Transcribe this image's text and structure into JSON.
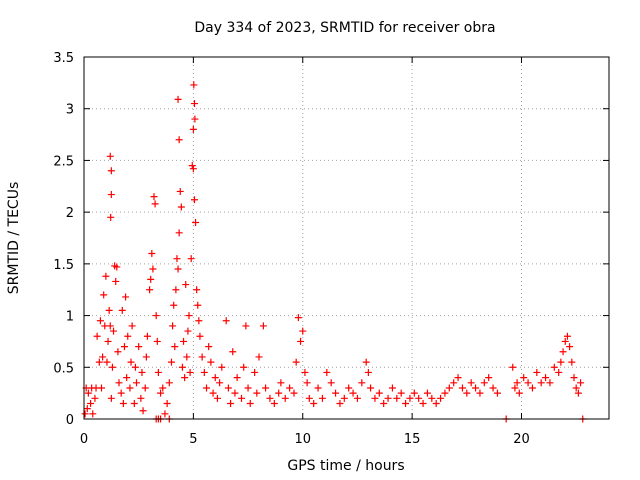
{
  "chart_data": {
    "type": "scatter",
    "title": "Day 334 of 2023, SRMTID for receiver obra",
    "xlabel": "GPS time / hours",
    "ylabel": "SRMTID / TECUs",
    "xlim": [
      0,
      24
    ],
    "ylim": [
      0,
      3.5
    ],
    "x_ticks": [
      0,
      5,
      10,
      15,
      20
    ],
    "x_tick_labels": [
      "0",
      "5",
      "10",
      "15",
      "20"
    ],
    "y_ticks": [
      0,
      0.5,
      1,
      1.5,
      2,
      2.5,
      3,
      3.5
    ],
    "y_tick_labels": [
      "0",
      "0.5",
      "1",
      "1.5",
      "2",
      "2.5",
      "3",
      "3.5"
    ],
    "grid": true,
    "marker": "+",
    "marker_color": "#ff0000",
    "series": [
      {
        "name": "obra",
        "points": [
          [
            0.05,
            0.05
          ],
          [
            0.1,
            0.3
          ],
          [
            0.15,
            0.1
          ],
          [
            0.2,
            0.25
          ],
          [
            0.3,
            0.15
          ],
          [
            0.35,
            0.3
          ],
          [
            0.4,
            0.05
          ],
          [
            0.5,
            0.2
          ],
          [
            0.55,
            0.3
          ],
          [
            0.6,
            0.8
          ],
          [
            0.7,
            0.55
          ],
          [
            0.75,
            0.95
          ],
          [
            0.8,
            0.3
          ],
          [
            0.85,
            0.6
          ],
          [
            0.9,
            1.2
          ],
          [
            0.95,
            0.9
          ],
          [
            1.0,
            1.38
          ],
          [
            1.05,
            0.55
          ],
          [
            1.1,
            0.75
          ],
          [
            1.15,
            1.05
          ],
          [
            1.2,
            0.9
          ],
          [
            1.25,
            0.2
          ],
          [
            1.3,
            0.5
          ],
          [
            1.35,
            0.85
          ],
          [
            1.4,
            1.48
          ],
          [
            1.45,
            1.33
          ],
          [
            1.5,
            1.47
          ],
          [
            1.2,
            2.54
          ],
          [
            1.25,
            2.4
          ],
          [
            1.25,
            2.17
          ],
          [
            1.22,
            1.95
          ],
          [
            1.55,
            0.65
          ],
          [
            1.6,
            0.35
          ],
          [
            1.7,
            0.25
          ],
          [
            1.75,
            1.05
          ],
          [
            1.8,
            0.15
          ],
          [
            1.85,
            0.7
          ],
          [
            1.9,
            1.18
          ],
          [
            1.95,
            0.4
          ],
          [
            2.0,
            0.8
          ],
          [
            2.1,
            0.3
          ],
          [
            2.15,
            0.55
          ],
          [
            2.2,
            0.9
          ],
          [
            2.3,
            0.15
          ],
          [
            2.35,
            0.5
          ],
          [
            2.4,
            0.35
          ],
          [
            2.5,
            0.7
          ],
          [
            2.6,
            0.2
          ],
          [
            2.65,
            0.45
          ],
          [
            2.7,
            0.08
          ],
          [
            2.8,
            0.3
          ],
          [
            2.85,
            0.6
          ],
          [
            2.9,
            0.8
          ],
          [
            3.0,
            1.25
          ],
          [
            3.05,
            1.35
          ],
          [
            3.1,
            1.6
          ],
          [
            3.15,
            1.45
          ],
          [
            3.2,
            2.15
          ],
          [
            3.25,
            2.08
          ],
          [
            3.3,
            1.0
          ],
          [
            3.35,
            0.75
          ],
          [
            3.4,
            0.45
          ],
          [
            3.5,
            0.25
          ],
          [
            3.6,
            0.3
          ],
          [
            3.7,
            0.05
          ],
          [
            3.8,
            0.15
          ],
          [
            3.9,
            0.35
          ],
          [
            4.0,
            0.55
          ],
          [
            4.05,
            0.9
          ],
          [
            4.1,
            1.1
          ],
          [
            4.15,
            0.7
          ],
          [
            4.2,
            1.25
          ],
          [
            4.25,
            1.55
          ],
          [
            4.3,
            1.45
          ],
          [
            4.35,
            1.8
          ],
          [
            4.4,
            2.2
          ],
          [
            4.45,
            2.05
          ],
          [
            4.3,
            3.09
          ],
          [
            4.35,
            2.7
          ],
          [
            4.5,
            0.5
          ],
          [
            4.55,
            0.75
          ],
          [
            4.6,
            0.4
          ],
          [
            4.65,
            1.3
          ],
          [
            4.7,
            0.6
          ],
          [
            4.75,
            0.85
          ],
          [
            4.8,
            1.0
          ],
          [
            4.85,
            0.45
          ],
          [
            4.9,
            1.55
          ],
          [
            4.95,
            2.45
          ],
          [
            5.0,
            2.42
          ],
          [
            5.05,
            2.12
          ],
          [
            5.1,
            1.9
          ],
          [
            5.02,
            3.23
          ],
          [
            5.05,
            3.05
          ],
          [
            5.07,
            2.9
          ],
          [
            5.0,
            2.8
          ],
          [
            5.15,
            1.25
          ],
          [
            5.2,
            1.1
          ],
          [
            5.25,
            0.95
          ],
          [
            5.3,
            0.8
          ],
          [
            5.4,
            0.6
          ],
          [
            5.5,
            0.45
          ],
          [
            5.6,
            0.3
          ],
          [
            5.7,
            0.7
          ],
          [
            5.8,
            0.55
          ],
          [
            5.9,
            0.25
          ],
          [
            6.0,
            0.4
          ],
          [
            6.1,
            0.2
          ],
          [
            6.2,
            0.35
          ],
          [
            6.3,
            0.5
          ],
          [
            6.5,
            0.95
          ],
          [
            6.6,
            0.3
          ],
          [
            6.7,
            0.15
          ],
          [
            6.8,
            0.65
          ],
          [
            6.9,
            0.25
          ],
          [
            7.0,
            0.4
          ],
          [
            7.2,
            0.2
          ],
          [
            7.3,
            0.5
          ],
          [
            7.4,
            0.9
          ],
          [
            7.5,
            0.3
          ],
          [
            7.6,
            0.15
          ],
          [
            7.8,
            0.45
          ],
          [
            7.9,
            0.25
          ],
          [
            8.0,
            0.6
          ],
          [
            8.2,
            0.9
          ],
          [
            8.3,
            0.3
          ],
          [
            8.5,
            0.2
          ],
          [
            8.7,
            0.15
          ],
          [
            8.9,
            0.25
          ],
          [
            9.0,
            0.35
          ],
          [
            9.2,
            0.2
          ],
          [
            9.4,
            0.3
          ],
          [
            9.6,
            0.25
          ],
          [
            9.7,
            0.55
          ],
          [
            9.8,
            0.98
          ],
          [
            9.9,
            0.75
          ],
          [
            10.0,
            0.85
          ],
          [
            10.1,
            0.45
          ],
          [
            10.2,
            0.35
          ],
          [
            10.3,
            0.2
          ],
          [
            10.5,
            0.15
          ],
          [
            10.7,
            0.3
          ],
          [
            10.9,
            0.2
          ],
          [
            11.1,
            0.45
          ],
          [
            11.3,
            0.35
          ],
          [
            11.5,
            0.25
          ],
          [
            11.7,
            0.15
          ],
          [
            11.9,
            0.2
          ],
          [
            12.1,
            0.3
          ],
          [
            12.3,
            0.25
          ],
          [
            12.5,
            0.2
          ],
          [
            12.7,
            0.35
          ],
          [
            12.9,
            0.55
          ],
          [
            13.0,
            0.45
          ],
          [
            13.1,
            0.3
          ],
          [
            13.3,
            0.2
          ],
          [
            13.5,
            0.25
          ],
          [
            13.7,
            0.15
          ],
          [
            13.9,
            0.2
          ],
          [
            14.1,
            0.3
          ],
          [
            14.3,
            0.2
          ],
          [
            14.5,
            0.25
          ],
          [
            14.7,
            0.15
          ],
          [
            14.9,
            0.2
          ],
          [
            15.1,
            0.25
          ],
          [
            15.3,
            0.2
          ],
          [
            15.5,
            0.15
          ],
          [
            15.7,
            0.25
          ],
          [
            15.9,
            0.2
          ],
          [
            16.1,
            0.15
          ],
          [
            16.3,
            0.2
          ],
          [
            16.5,
            0.25
          ],
          [
            16.7,
            0.3
          ],
          [
            16.9,
            0.35
          ],
          [
            17.1,
            0.4
          ],
          [
            17.3,
            0.3
          ],
          [
            17.5,
            0.25
          ],
          [
            17.7,
            0.35
          ],
          [
            17.9,
            0.3
          ],
          [
            18.1,
            0.25
          ],
          [
            18.3,
            0.35
          ],
          [
            18.5,
            0.4
          ],
          [
            18.7,
            0.3
          ],
          [
            18.9,
            0.25
          ],
          [
            19.3,
            0.0
          ],
          [
            19.6,
            0.5
          ],
          [
            19.7,
            0.3
          ],
          [
            19.8,
            0.35
          ],
          [
            19.9,
            0.25
          ],
          [
            20.1,
            0.4
          ],
          [
            20.3,
            0.35
          ],
          [
            20.5,
            0.3
          ],
          [
            20.7,
            0.45
          ],
          [
            20.9,
            0.35
          ],
          [
            21.1,
            0.4
          ],
          [
            21.3,
            0.35
          ],
          [
            21.5,
            0.5
          ],
          [
            21.7,
            0.45
          ],
          [
            21.8,
            0.55
          ],
          [
            21.9,
            0.65
          ],
          [
            22.0,
            0.75
          ],
          [
            22.1,
            0.8
          ],
          [
            22.2,
            0.7
          ],
          [
            22.3,
            0.55
          ],
          [
            22.4,
            0.4
          ],
          [
            22.5,
            0.3
          ],
          [
            22.6,
            0.25
          ],
          [
            22.7,
            0.35
          ],
          [
            22.8,
            0.0
          ],
          [
            3.3,
            0.0
          ],
          [
            3.4,
            0.0
          ],
          [
            3.5,
            0.0
          ],
          [
            3.9,
            0.0
          ]
        ]
      }
    ]
  }
}
